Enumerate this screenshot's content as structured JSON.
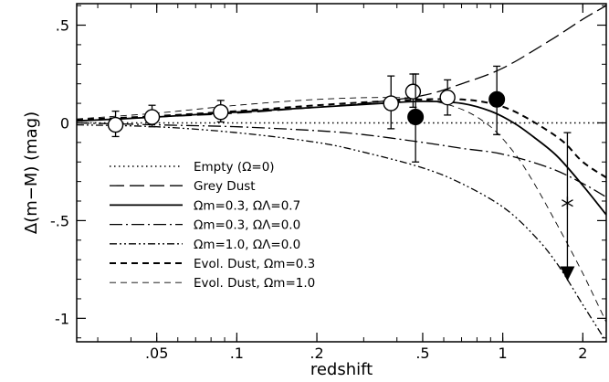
{
  "chart_data": {
    "type": "scatter",
    "title": "",
    "xlabel": "redshift",
    "ylabel": "Δ(m−M) (mag)",
    "xscale": "log",
    "xlim": [
      0.025,
      2.45
    ],
    "ylim": [
      -1.12,
      0.61
    ],
    "grid": false,
    "legend_placement": "lower-left",
    "x_ticks": [
      {
        "value": 0.05,
        "label": ".05"
      },
      {
        "value": 0.1,
        "label": ".1"
      },
      {
        "value": 0.2,
        "label": ".2"
      },
      {
        "value": 0.5,
        "label": ".5"
      },
      {
        "value": 1,
        "label": "1"
      },
      {
        "value": 2,
        "label": "2"
      }
    ],
    "y_ticks": [
      {
        "value": 0.5,
        "label": ".5"
      },
      {
        "value": 0,
        "label": "0"
      },
      {
        "value": -0.5,
        "label": "-.5"
      },
      {
        "value": -1,
        "label": "-1"
      }
    ],
    "legend": [
      {
        "style": "dotted",
        "text": "Empty (Ω=0)"
      },
      {
        "style": "longdash",
        "text": "Grey Dust"
      },
      {
        "style": "solid",
        "text": "Ωm=0.3,  ΩΛ=0.7"
      },
      {
        "style": "dashdot",
        "text": "Ωm=0.3,  ΩΛ=0.0"
      },
      {
        "style": "dashdotdot",
        "text": "Ωm=1.0,  ΩΛ=0.0"
      },
      {
        "style": "dashed",
        "text": "Evol. Dust,  Ωm=0.3"
      },
      {
        "style": "thindashed",
        "text": "Evol. Dust,  Ωm=1.0"
      }
    ],
    "series": [
      {
        "style": "dotted",
        "x": [
          0.025,
          0.1,
          0.5,
          1.0,
          2.45
        ],
        "y": [
          0,
          0,
          0,
          0,
          0
        ]
      },
      {
        "style": "longdash",
        "x": [
          0.025,
          0.05,
          0.1,
          0.2,
          0.3,
          0.5,
          0.7,
          1.0,
          1.5,
          2.0,
          2.45
        ],
        "y": [
          0.01,
          0.03,
          0.05,
          0.08,
          0.1,
          0.14,
          0.2,
          0.28,
          0.42,
          0.53,
          0.6
        ]
      },
      {
        "style": "solid",
        "x": [
          0.025,
          0.05,
          0.1,
          0.2,
          0.35,
          0.5,
          0.7,
          0.9,
          1.1,
          1.3,
          1.6,
          2.0,
          2.45
        ],
        "y": [
          0.01,
          0.03,
          0.055,
          0.08,
          0.1,
          0.11,
          0.1,
          0.06,
          0.0,
          -0.07,
          -0.17,
          -0.32,
          -0.47
        ]
      },
      {
        "style": "dashdot",
        "x": [
          0.025,
          0.05,
          0.1,
          0.2,
          0.3,
          0.5,
          0.7,
          1.0,
          1.5,
          2.0,
          2.45
        ],
        "y": [
          0.0,
          -0.01,
          -0.02,
          -0.04,
          -0.06,
          -0.1,
          -0.13,
          -0.16,
          -0.23,
          -0.31,
          -0.38
        ]
      },
      {
        "style": "dashdotdot",
        "x": [
          0.025,
          0.05,
          0.1,
          0.2,
          0.3,
          0.5,
          0.7,
          1.0,
          1.3,
          1.6,
          2.0,
          2.45
        ],
        "y": [
          -0.01,
          -0.02,
          -0.05,
          -0.1,
          -0.15,
          -0.23,
          -0.31,
          -0.43,
          -0.57,
          -0.72,
          -0.93,
          -1.12
        ]
      },
      {
        "style": "dashed",
        "x": [
          0.025,
          0.05,
          0.1,
          0.2,
          0.35,
          0.5,
          0.7,
          0.9,
          1.1,
          1.4,
          1.7,
          2.0,
          2.45
        ],
        "y": [
          0.015,
          0.035,
          0.06,
          0.09,
          0.11,
          0.12,
          0.12,
          0.1,
          0.06,
          -0.02,
          -0.1,
          -0.2,
          -0.28
        ]
      },
      {
        "style": "thindashed",
        "x": [
          0.025,
          0.05,
          0.1,
          0.2,
          0.35,
          0.5,
          0.7,
          0.9,
          1.1,
          1.3,
          1.6,
          2.0,
          2.45
        ],
        "y": [
          0.02,
          0.05,
          0.09,
          0.12,
          0.13,
          0.12,
          0.07,
          -0.02,
          -0.15,
          -0.3,
          -0.52,
          -0.77,
          -1.02
        ]
      }
    ],
    "points": [
      {
        "marker": "open-circle",
        "x": 0.035,
        "y": -0.01,
        "err_low": 0.06,
        "err_high": 0.07
      },
      {
        "marker": "open-circle",
        "x": 0.048,
        "y": 0.03,
        "err_low": 0.05,
        "err_high": 0.06
      },
      {
        "marker": "open-circle",
        "x": 0.087,
        "y": 0.055,
        "err_low": 0.05,
        "err_high": 0.06
      },
      {
        "marker": "open-circle",
        "x": 0.38,
        "y": 0.1,
        "err_low": 0.13,
        "err_high": 0.14
      },
      {
        "marker": "open-circle",
        "x": 0.46,
        "y": 0.16,
        "err_low": 0.08,
        "err_high": 0.09
      },
      {
        "marker": "open-circle",
        "x": 0.62,
        "y": 0.13,
        "err_low": 0.09,
        "err_high": 0.09
      },
      {
        "marker": "filled-circle",
        "x": 0.47,
        "y": 0.03,
        "err_low": 0.23,
        "err_high": 0.22
      },
      {
        "marker": "filled-circle",
        "x": 0.95,
        "y": 0.12,
        "err_low": 0.18,
        "err_high": 0.17
      },
      {
        "marker": "star",
        "x": 1.75,
        "y": -0.41,
        "err_low": 0.39,
        "err_high": 0.36,
        "limit_arrow": true
      }
    ]
  }
}
